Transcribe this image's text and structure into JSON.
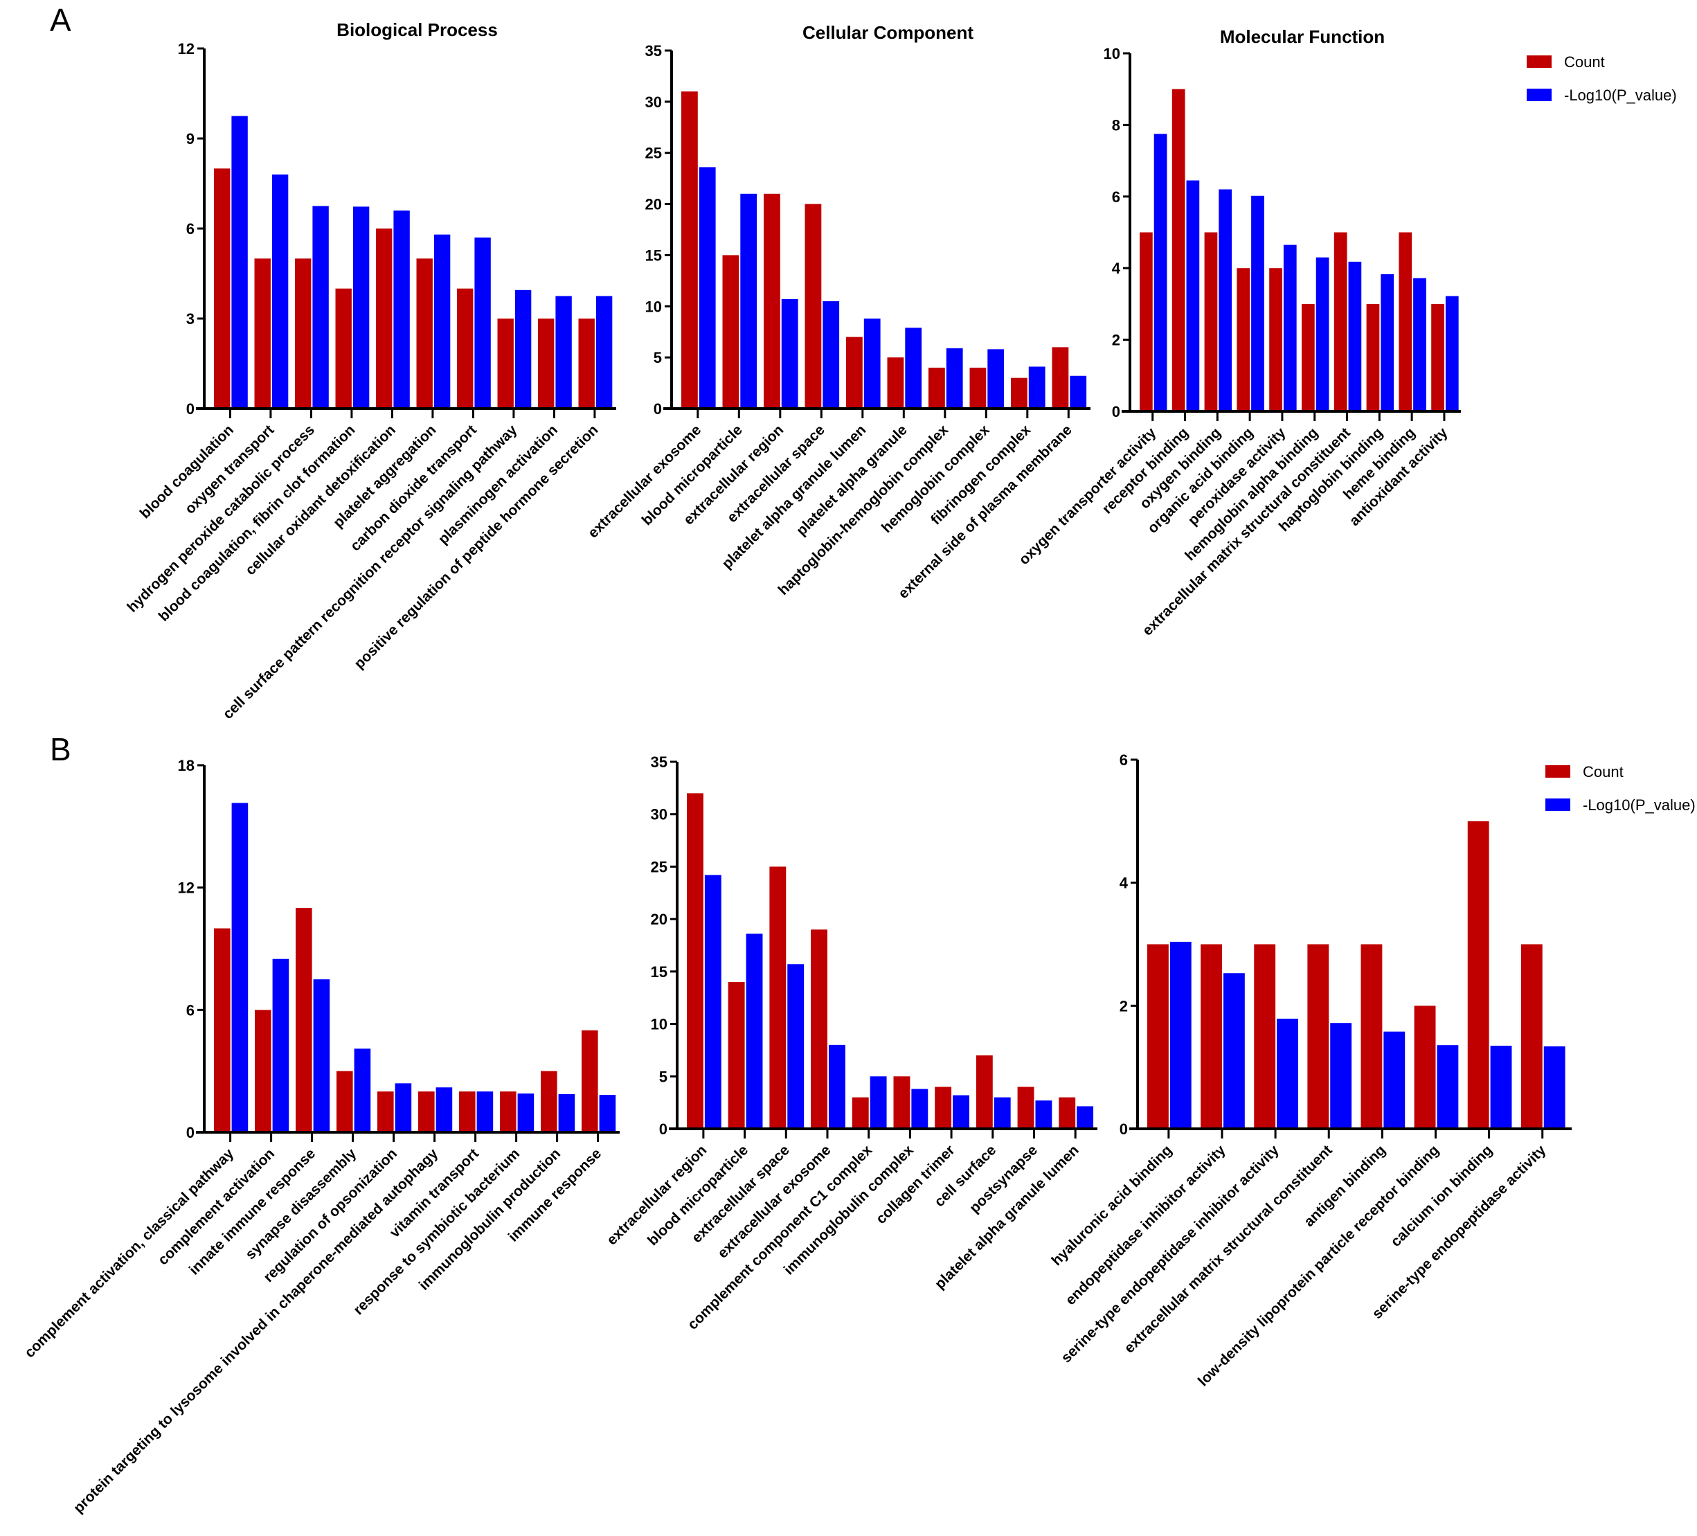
{
  "panels": [
    {
      "letter": "A"
    },
    {
      "letter": "B"
    }
  ],
  "legend": {
    "count_label": "Count",
    "pvalue_label": "-Log10(P_value)",
    "count_color": "#C00000",
    "pvalue_color": "#0000FF"
  },
  "chart_data": [
    {
      "type": "bar",
      "panel": "A",
      "title": "Biological Process",
      "xlabel": "",
      "ylabel": "",
      "ylim": [
        0,
        12
      ],
      "yticks": [
        0,
        3,
        6,
        9,
        12
      ],
      "legend": "none",
      "categories": [
        "blood coagulation",
        "oxygen transport",
        "hydrogen peroxide catabolic process",
        "blood coagulation, fibrin clot formation",
        "cellular oxidant detoxification",
        "platelet aggregation",
        "carbon dioxide transport",
        "cell surface pattern recognition receptor signaling pathway",
        "plasminogen activation",
        "positive regulation of peptide hormone secretion"
      ],
      "series": [
        {
          "name": "Count",
          "values": [
            8,
            5,
            5,
            4,
            6,
            5,
            4,
            3,
            3,
            3
          ]
        },
        {
          "name": "-Log10(P_value)",
          "values": [
            9.75,
            7.8,
            6.75,
            6.73,
            6.6,
            5.8,
            5.7,
            3.95,
            3.75,
            3.75
          ]
        }
      ]
    },
    {
      "type": "bar",
      "panel": "A",
      "title": "Cellular Component",
      "xlabel": "",
      "ylabel": "",
      "ylim": [
        0,
        35
      ],
      "yticks": [
        0,
        5,
        10,
        15,
        20,
        25,
        30,
        35
      ],
      "legend": "none",
      "categories": [
        "extracellular exosome",
        "blood microparticle",
        "extracellular region",
        "extracellular space",
        "platelet alpha granule lumen",
        "platelet alpha granule",
        "haptoglobin-hemoglobin complex",
        "hemoglobin complex",
        "fibrinogen complex",
        "external side of plasma membrane"
      ],
      "series": [
        {
          "name": "Count",
          "values": [
            31,
            15,
            21,
            20,
            7,
            5,
            4,
            4,
            3,
            6
          ]
        },
        {
          "name": "-Log10(P_value)",
          "values": [
            23.6,
            21.0,
            10.7,
            10.5,
            8.8,
            7.9,
            5.9,
            5.8,
            4.1,
            3.2
          ]
        }
      ]
    },
    {
      "type": "bar",
      "panel": "A",
      "title": "Molecular Function",
      "xlabel": "",
      "ylabel": "",
      "ylim": [
        0,
        10
      ],
      "yticks": [
        0,
        2,
        4,
        6,
        8,
        10
      ],
      "legend": "top-right",
      "categories": [
        "oxygen transporter activity",
        "receptor binding",
        "oxygen binding",
        "organic acid binding",
        "peroxidase activity",
        "hemoglobin alpha binding",
        "extracellular matrix structural constituent",
        "haptoglobin binding",
        "heme binding",
        "antioxidant activity"
      ],
      "series": [
        {
          "name": "Count",
          "values": [
            5,
            9,
            5,
            4,
            4,
            3,
            5,
            3,
            5,
            3
          ]
        },
        {
          "name": "-Log10(P_value)",
          "values": [
            7.75,
            6.45,
            6.2,
            6.02,
            4.65,
            4.3,
            4.18,
            3.83,
            3.72,
            3.22
          ]
        }
      ]
    },
    {
      "type": "bar",
      "panel": "B",
      "title": "",
      "xlabel": "",
      "ylabel": "",
      "ylim": [
        0,
        18
      ],
      "yticks": [
        0,
        6,
        12,
        18
      ],
      "legend": "none",
      "categories": [
        "complement activation, classical pathway",
        "complement activation",
        "innate immune response",
        "synapse disassembly",
        "regulation of opsonization",
        "protein targeting to lysosome involved in chaperone-mediated autophagy",
        "vitamin transport",
        "response to symbiotic bacterium",
        "immunoglobulin production",
        "immune response"
      ],
      "series": [
        {
          "name": "Count",
          "values": [
            10,
            6,
            11,
            3,
            2,
            2,
            2,
            2,
            3,
            5
          ]
        },
        {
          "name": "-Log10(P_value)",
          "values": [
            16.15,
            8.5,
            7.5,
            4.1,
            2.4,
            2.2,
            2.0,
            1.9,
            1.87,
            1.83
          ]
        }
      ]
    },
    {
      "type": "bar",
      "panel": "B",
      "title": "",
      "xlabel": "",
      "ylabel": "",
      "ylim": [
        0,
        35
      ],
      "yticks": [
        0,
        5,
        10,
        15,
        20,
        25,
        30,
        35
      ],
      "legend": "none",
      "categories": [
        "extracellular region",
        "blood microparticle",
        "extracellular space",
        "extracellular exosome",
        "complement component C1 complex",
        "immunoglobulin complex",
        "collagen trimer",
        "cell surface",
        "postsynapse",
        "platelet alpha granule lumen"
      ],
      "series": [
        {
          "name": "Count",
          "values": [
            32,
            14,
            25,
            19,
            3,
            5,
            4,
            7,
            4,
            3
          ]
        },
        {
          "name": "-Log10(P_value)",
          "values": [
            24.2,
            18.6,
            15.7,
            8.0,
            5.0,
            3.8,
            3.2,
            3.0,
            2.7,
            2.15
          ]
        }
      ]
    },
    {
      "type": "bar",
      "panel": "B",
      "title": "",
      "xlabel": "",
      "ylabel": "",
      "ylim": [
        0,
        6
      ],
      "yticks": [
        0,
        2,
        4,
        6
      ],
      "legend": "top-right",
      "categories": [
        "hyaluronic acid binding",
        "endopeptidase inhibitor activity",
        "serine-type endopeptidase inhibitor activity",
        "extracellular matrix structural constituent",
        "antigen binding",
        "low-density lipoprotein particle receptor binding",
        "calcium ion binding",
        "serine-type endopeptidase activity"
      ],
      "series": [
        {
          "name": "Count",
          "values": [
            3,
            3,
            3,
            3,
            3,
            2,
            5,
            3
          ]
        },
        {
          "name": "-Log10(P_value)",
          "values": [
            3.04,
            2.53,
            1.79,
            1.72,
            1.58,
            1.36,
            1.35,
            1.34
          ]
        }
      ]
    }
  ]
}
